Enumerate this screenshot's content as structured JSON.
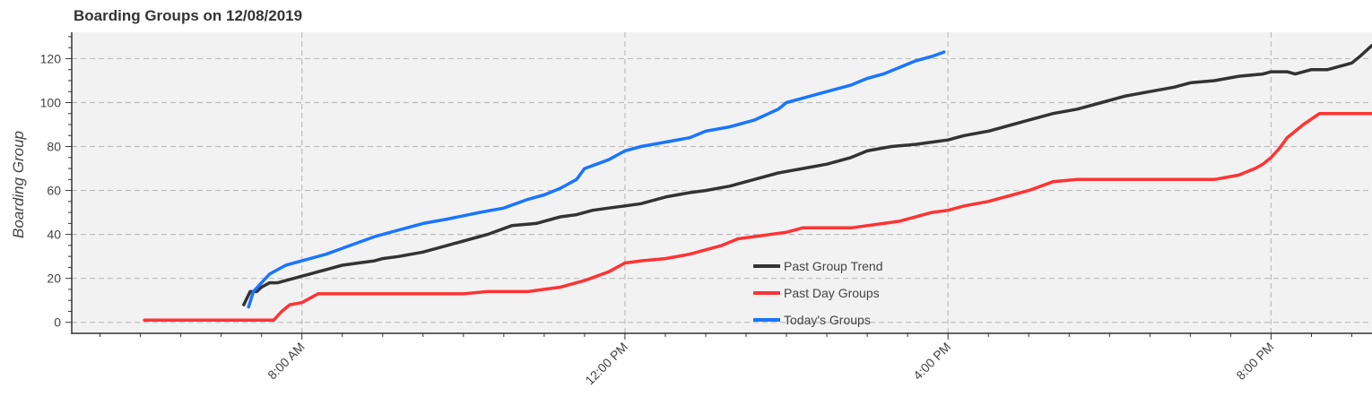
{
  "chart_data": {
    "type": "line",
    "title": "Boarding Groups on 12/08/2019",
    "ylabel": "Boarding Group",
    "xlabel": "",
    "x_unit": "hour of day (24h)",
    "xlim": [
      5.15,
      21.25
    ],
    "ylim": [
      -5,
      132
    ],
    "x_ticks": [
      {
        "x": 8,
        "label": "8:00 AM"
      },
      {
        "x": 12,
        "label": "12:00 PM"
      },
      {
        "x": 16,
        "label": "4:00 PM"
      },
      {
        "x": 20,
        "label": "8:00 PM"
      }
    ],
    "y_ticks": [
      {
        "y": 0,
        "label": "0"
      },
      {
        "y": 20,
        "label": "20"
      },
      {
        "y": 40,
        "label": "40"
      },
      {
        "y": 60,
        "label": "60"
      },
      {
        "y": 80,
        "label": "80"
      },
      {
        "y": 100,
        "label": "100"
      },
      {
        "y": 120,
        "label": "120"
      }
    ],
    "grid": {
      "x": true,
      "y": true,
      "style": "dashed"
    },
    "legend_position": "bottom-center",
    "series": [
      {
        "name": "Past Group Trend",
        "color": "#333333",
        "x": [
          7.28,
          7.36,
          7.44,
          7.5,
          7.6,
          7.7,
          7.8,
          7.9,
          8.0,
          8.1,
          8.2,
          8.3,
          8.5,
          8.7,
          8.9,
          9.0,
          9.2,
          9.5,
          9.8,
          10.0,
          10.3,
          10.6,
          10.9,
          11.0,
          11.2,
          11.4,
          11.6,
          11.8,
          12.0,
          12.2,
          12.5,
          12.8,
          13.0,
          13.3,
          13.6,
          13.9,
          14.2,
          14.5,
          14.8,
          15.0,
          15.3,
          15.6,
          15.8,
          16.0,
          16.1,
          16.2,
          16.5,
          16.8,
          17.0,
          17.3,
          17.6,
          17.9,
          18.2,
          18.5,
          18.8,
          19.0,
          19.3,
          19.6,
          19.9,
          20.0,
          20.2,
          20.3,
          20.5,
          20.7,
          20.9,
          21.0,
          21.1,
          21.25
        ],
        "y": [
          8,
          14,
          14,
          16,
          18,
          18,
          19,
          20,
          21,
          22,
          23,
          24,
          26,
          27,
          28,
          29,
          30,
          32,
          35,
          37,
          40,
          44,
          45,
          46,
          48,
          49,
          51,
          52,
          53,
          54,
          57,
          59,
          60,
          62,
          65,
          68,
          70,
          72,
          75,
          78,
          80,
          81,
          82,
          83,
          84,
          85,
          87,
          90,
          92,
          95,
          97,
          100,
          103,
          105,
          107,
          109,
          110,
          112,
          113,
          114,
          114,
          113,
          115,
          115,
          117,
          118,
          121,
          126
        ]
      },
      {
        "name": "Past Day Groups",
        "color": "#ff3333",
        "x": [
          6.05,
          7.0,
          7.5,
          7.65,
          7.75,
          7.85,
          8.0,
          8.2,
          8.4,
          8.8,
          9.5,
          10.0,
          10.3,
          10.8,
          11.0,
          11.2,
          11.5,
          11.8,
          12.0,
          12.2,
          12.5,
          12.8,
          13.0,
          13.2,
          13.4,
          13.6,
          13.8,
          14.0,
          14.2,
          14.5,
          14.8,
          15.0,
          15.2,
          15.4,
          15.6,
          15.8,
          16.0,
          16.2,
          16.5,
          16.8,
          17.0,
          17.3,
          17.6,
          18.0,
          18.5,
          19.0,
          19.3,
          19.6,
          19.8,
          19.9,
          20.0,
          20.1,
          20.2,
          20.4,
          20.6,
          21.25
        ],
        "y": [
          1,
          1,
          1,
          1,
          5,
          8,
          9,
          13,
          13,
          13,
          13,
          13,
          14,
          14,
          15,
          16,
          19,
          23,
          27,
          28,
          29,
          31,
          33,
          35,
          38,
          39,
          40,
          41,
          43,
          43,
          43,
          44,
          45,
          46,
          48,
          50,
          51,
          53,
          55,
          58,
          60,
          64,
          65,
          65,
          65,
          65,
          65,
          67,
          70,
          72,
          75,
          79,
          84,
          90,
          95,
          95
        ]
      },
      {
        "name": "Today's Groups",
        "color": "#1a75ff",
        "x": [
          7.34,
          7.4,
          7.5,
          7.6,
          7.7,
          7.8,
          8.0,
          8.3,
          8.6,
          8.9,
          9.2,
          9.5,
          9.8,
          10.2,
          10.5,
          10.8,
          11.0,
          11.2,
          11.4,
          11.5,
          11.8,
          12.0,
          12.2,
          12.5,
          12.8,
          13.0,
          13.3,
          13.6,
          13.9,
          14.0,
          14.2,
          14.5,
          14.8,
          15.0,
          15.2,
          15.4,
          15.6,
          15.8,
          15.95
        ],
        "y": [
          7,
          14,
          18,
          22,
          24,
          26,
          28,
          31,
          35,
          39,
          42,
          45,
          47,
          50,
          52,
          56,
          58,
          61,
          65,
          70,
          74,
          78,
          80,
          82,
          84,
          87,
          89,
          92,
          97,
          100,
          102,
          105,
          108,
          111,
          113,
          116,
          119,
          121,
          123
        ]
      }
    ]
  }
}
